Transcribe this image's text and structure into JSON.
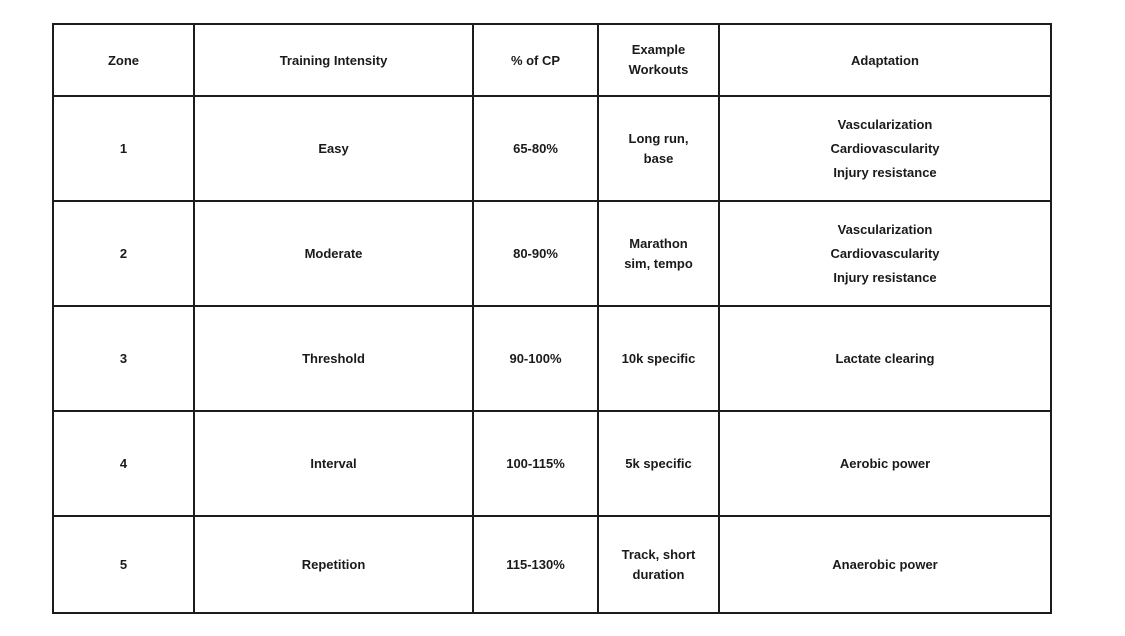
{
  "page": {
    "background_color": "#ffffff",
    "border_color": "#1c1c1c",
    "text_color": "#1a1a1a"
  },
  "table": {
    "title": "training-zones-table",
    "header": {
      "zone": "Zone",
      "intensity": "Training Intensity",
      "cp": "% of CP",
      "workouts": [
        "Example",
        "Workouts"
      ],
      "adaptation": "Adaptation"
    },
    "rows": [
      {
        "zone": "1",
        "intensity": "Easy",
        "cp": "65-80%",
        "workouts": [
          "Long run,",
          "base"
        ],
        "adaptation": [
          "Vascularization",
          "Cardiovascularity",
          "Injury resistance"
        ]
      },
      {
        "zone": "2",
        "intensity": "Moderate",
        "cp": "80-90%",
        "workouts": [
          "Marathon",
          "sim, tempo"
        ],
        "adaptation": [
          "Vascularization",
          "Cardiovascularity",
          "Injury resistance"
        ]
      },
      {
        "zone": "3",
        "intensity": "Threshold",
        "cp": "90-100%",
        "workouts": [
          "10k specific"
        ],
        "adaptation": [
          "Lactate clearing"
        ]
      },
      {
        "zone": "4",
        "intensity": "Interval",
        "cp": "100-115%",
        "workouts": [
          "5k specific"
        ],
        "adaptation": [
          "Aerobic power"
        ]
      },
      {
        "zone": "5",
        "intensity": "Repetition",
        "cp": "115-130%",
        "workouts": [
          "Track, short",
          "duration"
        ],
        "adaptation": [
          "Anaerobic power"
        ]
      }
    ]
  }
}
